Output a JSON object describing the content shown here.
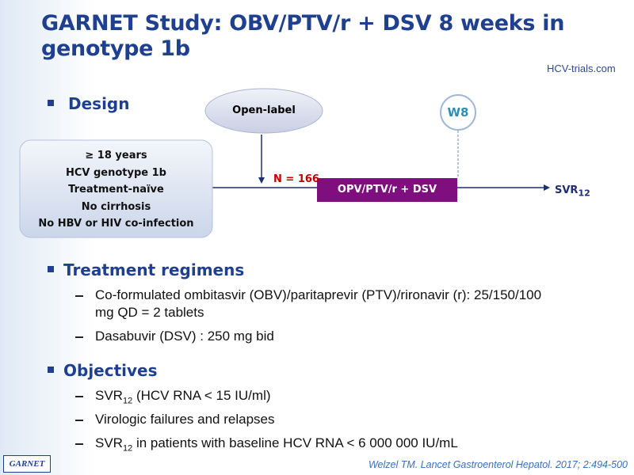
{
  "header": {
    "title_line1": "GARNET Study: OBV/PTV/r + DSV 8 weeks in",
    "title_line2": "genotype 1b",
    "logo": "HCV-trials.com"
  },
  "design": {
    "heading": "Design",
    "open_label": "Open-label",
    "week": "W8",
    "criteria": [
      "≥ 18 years",
      "HCV genotype 1b",
      "Treatment-naïve",
      "No cirrhosis",
      "No HBV or HIV co-infection"
    ],
    "n": "N = 166",
    "arm": "OPV/PTV/r  + DSV",
    "outcome": {
      "main": "SVR",
      "sub": "12"
    }
  },
  "treatment": {
    "heading": "Treatment regimens",
    "items": [
      "Co-formulated ombitasvir (OBV)/paritaprevir (PTV)/rironavir (r): 25/150/100 mg QD = 2 tablets",
      "Dasabuvir (DSV) : 250 mg bid"
    ]
  },
  "objectives": {
    "heading": "Objectives",
    "items": [
      {
        "main": "SVR",
        "sub": "12",
        "rest": " (HCV RNA < 15 IU/ml)"
      },
      {
        "main": "Virologic failures and relapses"
      },
      {
        "main": "SVR",
        "sub": "12",
        "rest": " in patients with baseline HCV RNA < 6 000 000 IU/mL"
      }
    ]
  },
  "footer": {
    "badge": "GARNET",
    "citation": "Welzel TM. Lancet Gastroenterol Hepatol. 2017; 2:494-500"
  }
}
